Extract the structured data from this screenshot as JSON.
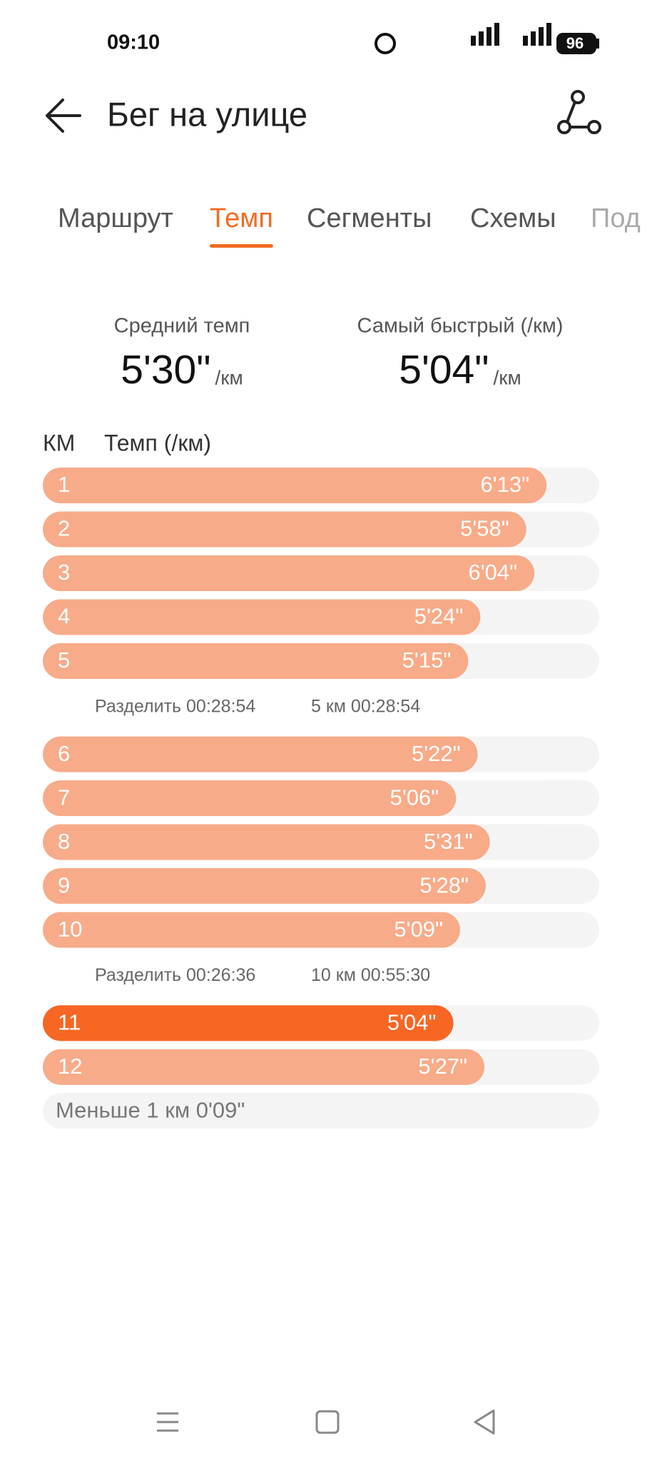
{
  "status_bar": {
    "time": "09:10",
    "battery": "96"
  },
  "header": {
    "title": "Бег на улице"
  },
  "tabs": [
    "Маршрут",
    "Темп",
    "Сегменты",
    "Схемы",
    "Под"
  ],
  "stats": [
    {
      "label": "Средний темп",
      "value": "5'30\"",
      "unit": "/км"
    },
    {
      "label": "Самый быстрый (/км)",
      "value": "5'04\"",
      "unit": "/км"
    }
  ],
  "chart_data": {
    "type": "bar",
    "orientation": "horizontal",
    "column_headers": [
      "КМ",
      "Темп (/км)"
    ],
    "categories": [
      "1",
      "2",
      "3",
      "4",
      "5",
      "6",
      "7",
      "8",
      "9",
      "10",
      "11",
      "12"
    ],
    "values": [
      373,
      358,
      364,
      324,
      315,
      322,
      306,
      331,
      328,
      309,
      304,
      327
    ],
    "value_labels": [
      "6'13\"",
      "5'58\"",
      "6'04\"",
      "5'24\"",
      "5'15\"",
      "5'22\"",
      "5'06\"",
      "5'31\"",
      "5'28\"",
      "5'09\"",
      "5'04\"",
      "5'27\""
    ],
    "xlim": [
      0,
      412
    ],
    "color": "#f7ab89",
    "highlight_color": "#f86624",
    "splits": [
      [
        "Разделить 00:28:54",
        "5 км 00:28:54"
      ],
      [
        "Разделить 00:26:36",
        "10 км 00:55:30"
      ]
    ],
    "remainder": "Меньше 1 км 0'09\""
  }
}
